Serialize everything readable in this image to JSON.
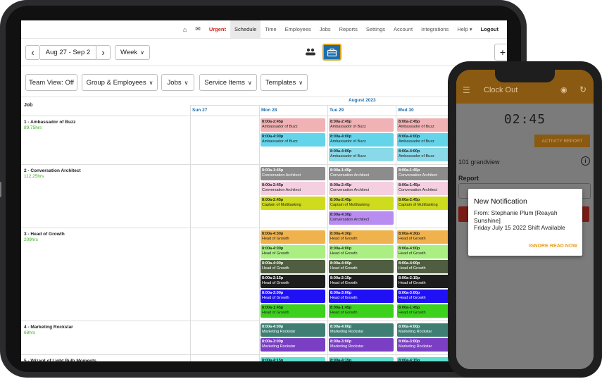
{
  "nav": {
    "home_icon": "home-icon",
    "mail_icon": "envelope-icon",
    "items": [
      "Urgent",
      "Schedule",
      "Time",
      "Employees",
      "Jobs",
      "Reports",
      "Settings",
      "Account",
      "Integrations",
      "Help ▾",
      "Logout"
    ]
  },
  "toolbar": {
    "date_range": "Aug 27 - Sep 2",
    "prev": "‹",
    "next": "›",
    "view": "Week",
    "add": "+"
  },
  "filters": {
    "team_view": "Team View: Off",
    "group": "Group & Employees",
    "jobs": "Jobs",
    "service": "Service Items",
    "templates": "Templates"
  },
  "grid": {
    "job_header": "Job",
    "month": "August 2023",
    "days": [
      "Sun 27",
      "Mon 28",
      "Tue 29",
      "Wed 30"
    ],
    "jobs": [
      {
        "title": "1 - Ambassador of Buzz",
        "hours": "89.75hrs",
        "mon": [
          {
            "t": "8:00a-2:45p",
            "n": "Ambassador of Buzz",
            "c": "#f0b2b4"
          },
          {
            "t": "8:00a-4:00p",
            "n": "Ambassador of Buzz",
            "c": "#63d4ea"
          }
        ],
        "tue": [
          {
            "t": "8:00a-2:45p",
            "n": "Ambassador of Buzz",
            "c": "#f0b2b4"
          },
          {
            "t": "8:00a-4:00p",
            "n": "Ambassador of Buzz",
            "c": "#63d4ea"
          },
          {
            "t": "8:00a-4:00p",
            "n": "Ambassador of Buzz",
            "c": "#8ad9e8"
          }
        ],
        "wed": [
          {
            "t": "8:00a-2:45p",
            "n": "Ambassador of Buzz",
            "c": "#f0b2b4"
          },
          {
            "t": "8:00a-4:00p",
            "n": "Ambassador of Buzz",
            "c": "#63d4ea"
          },
          {
            "t": "8:00a-4:00p",
            "n": "Ambassador of Buzz",
            "c": "#8ad9e8"
          }
        ]
      },
      {
        "title": "2 - Conversation Architect",
        "hours": "112.25hrs",
        "mon": [
          {
            "t": "8:00a-1:45p",
            "n": "Conversation Architect",
            "c": "#8c8c8c",
            "d": true
          },
          {
            "t": "8:00a-2:45p",
            "n": "Conversation Architect",
            "c": "#f3cfe0"
          },
          {
            "t": "8:00a-2:45p",
            "n": "Captain of Multitasking",
            "c": "#cfdc1e"
          }
        ],
        "tue": [
          {
            "t": "8:00a-1:45p",
            "n": "Conversation Architect",
            "c": "#8c8c8c",
            "d": true
          },
          {
            "t": "8:00a-2:45p",
            "n": "Conversation Architect",
            "c": "#f3cfe0"
          },
          {
            "t": "8:00a-2:45p",
            "n": "Captain of Multitasking",
            "c": "#cfdc1e"
          },
          {
            "t": "8:00a-4:30p",
            "n": "Conversation Architect",
            "c": "#b88cf0"
          }
        ],
        "wed": [
          {
            "t": "8:00a-1:45p",
            "n": "Conversation Architect",
            "c": "#8c8c8c",
            "d": true
          },
          {
            "t": "8:00a-1:45p",
            "n": "Conversation Architect",
            "c": "#f3cfe0"
          },
          {
            "t": "8:00a-2:45p",
            "n": "Captain of Multitasking",
            "c": "#cfdc1e"
          }
        ]
      },
      {
        "title": "3 - Head of Growth",
        "hours": "209hrs",
        "mon": [
          {
            "t": "8:00a-4:30p",
            "n": "Head of Growth",
            "c": "#f0b24c"
          },
          {
            "t": "8:00a-4:00p",
            "n": "Head of Growth",
            "c": "#a9ef82"
          },
          {
            "t": "8:00a-4:00p",
            "n": "Head of Growth",
            "c": "#4f5e40",
            "d": true
          },
          {
            "t": "8:00a-2:15p",
            "n": "Head of Growth",
            "c": "#1d1d1d",
            "d": true
          },
          {
            "t": "8:00a-3:00p",
            "n": "Head of Growth",
            "c": "#1f10f5",
            "d": true
          },
          {
            "t": "8:00a-1:45p",
            "n": "Head of Growth",
            "c": "#3bd11c"
          }
        ],
        "tue": [
          {
            "t": "8:00a-4:30p",
            "n": "Head of Growth",
            "c": "#f0b24c"
          },
          {
            "t": "8:00a-4:00p",
            "n": "Head of Growth",
            "c": "#a9ef82"
          },
          {
            "t": "8:00a-4:00p",
            "n": "Head of Growth",
            "c": "#4f5e40",
            "d": true
          },
          {
            "t": "8:00a-2:15p",
            "n": "Head of Growth",
            "c": "#1d1d1d",
            "d": true
          },
          {
            "t": "8:00a-3:00p",
            "n": "Head of Growth",
            "c": "#1f10f5",
            "d": true
          },
          {
            "t": "8:00a-1:45p",
            "n": "Head of Growth",
            "c": "#3bd11c"
          }
        ],
        "wed": [
          {
            "t": "8:00a-4:30p",
            "n": "Head of Growth",
            "c": "#f0b24c"
          },
          {
            "t": "8:00a-4:00p",
            "n": "Head of Growth",
            "c": "#a9ef82"
          },
          {
            "t": "8:00a-4:00p",
            "n": "Head of Growth",
            "c": "#4f5e40",
            "d": true
          },
          {
            "t": "8:00a-2:15p",
            "n": "Head of Growth",
            "c": "#1d1d1d",
            "d": true
          },
          {
            "t": "8:00a-3:00p",
            "n": "Head of Growth",
            "c": "#1f10f5",
            "d": true
          },
          {
            "t": "8:00a-1:45p",
            "n": "Head of Growth",
            "c": "#3bd11c"
          }
        ]
      },
      {
        "title": "4 - Marketing Rockstar",
        "hours": "68hrs",
        "mon": [
          {
            "t": "8:00a-4:00p",
            "n": "Marketing Rockstar",
            "c": "#3f7f73",
            "d": true
          },
          {
            "t": "8:00a-3:00p",
            "n": "Marketing Rockstar",
            "c": "#7a3fc2",
            "d": true
          }
        ],
        "tue": [
          {
            "t": "8:00a-4:00p",
            "n": "Marketing Rockstar",
            "c": "#3f7f73",
            "d": true
          },
          {
            "t": "8:00a-3:00p",
            "n": "Marketing Rockstar",
            "c": "#7a3fc2",
            "d": true
          }
        ],
        "wed": [
          {
            "t": "8:00a-4:00p",
            "n": "Marketing Rockstar",
            "c": "#3f7f73",
            "d": true
          },
          {
            "t": "8:00a-3:00p",
            "n": "Marketing Rockstar",
            "c": "#7a3fc2",
            "d": true
          }
        ]
      },
      {
        "title": "5 - Wizard of Light Bulb Moments",
        "hours": "",
        "mon": [
          {
            "t": "8:00a-4:15p",
            "n": "Wizard of Light Bulb Moments",
            "c": "#5fe0d0"
          }
        ],
        "tue": [
          {
            "t": "8:00a-4:15p",
            "n": "Wizard of Light Bulb Moments",
            "c": "#5fe0d0"
          }
        ],
        "wed": [
          {
            "t": "8:00a-4:15p",
            "n": "Wizard of Light Bulb Moments",
            "c": "#5fe0d0"
          }
        ]
      }
    ]
  },
  "phone": {
    "title": "Clock Out",
    "timer": "02:45",
    "activity_report": "ACTIVITY REPORT",
    "location": "101 grandview",
    "report_label": "Report",
    "notification": {
      "title": "New Notification",
      "body_line1": "From: Stephanie Plum [Reayah",
      "body_line2": "Sunshine]",
      "body_line3": "Friday July 15 2022 Shift Available",
      "ignore": "IGNORE",
      "read": "READ NOW"
    }
  },
  "colors": {
    "accent": "#d9261c",
    "phone_header": "#c17f1d",
    "action": "#e8a020",
    "green_hours": "#3bb01f"
  }
}
